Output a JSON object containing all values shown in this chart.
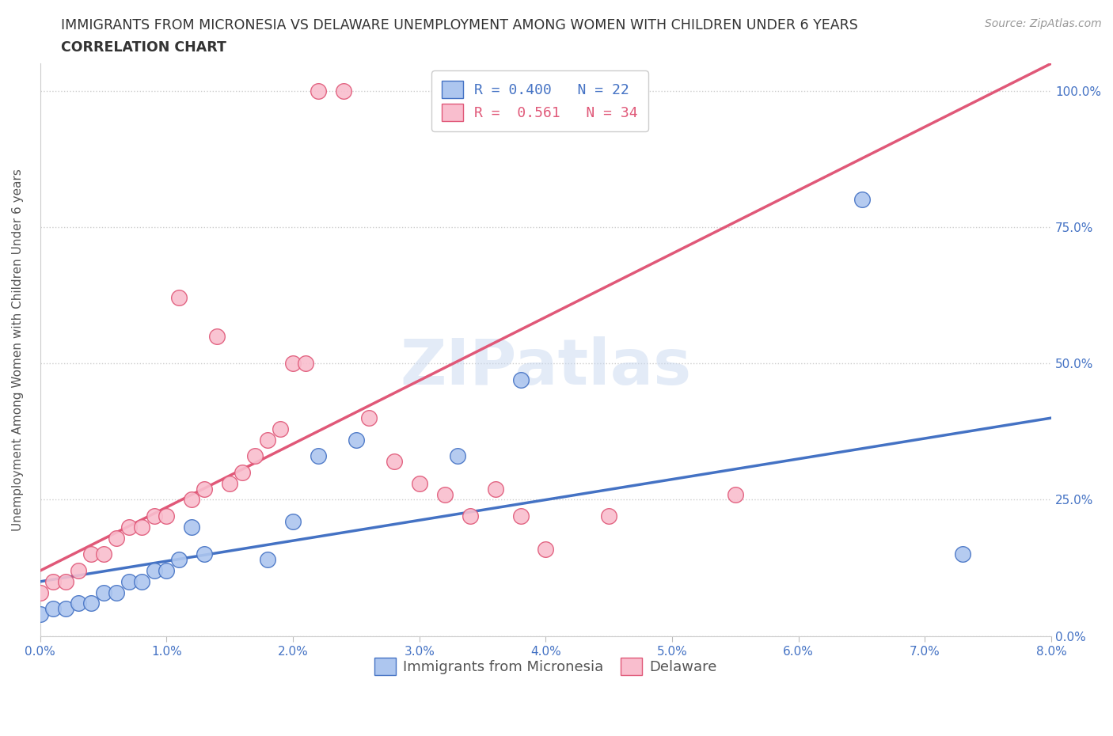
{
  "title_line1": "IMMIGRANTS FROM MICRONESIA VS DELAWARE UNEMPLOYMENT AMONG WOMEN WITH CHILDREN UNDER 6 YEARS",
  "title_line2": "CORRELATION CHART",
  "source_text": "Source: ZipAtlas.com",
  "ylabel": "Unemployment Among Women with Children Under 6 years",
  "xlim": [
    0.0,
    0.08
  ],
  "ylim": [
    0.0,
    1.05
  ],
  "xtick_labels": [
    "0.0%",
    "1.0%",
    "2.0%",
    "3.0%",
    "4.0%",
    "5.0%",
    "6.0%",
    "7.0%",
    "8.0%"
  ],
  "xtick_values": [
    0.0,
    0.01,
    0.02,
    0.03,
    0.04,
    0.05,
    0.06,
    0.07,
    0.08
  ],
  "ytick_labels": [
    "0.0%",
    "25.0%",
    "50.0%",
    "75.0%",
    "100.0%"
  ],
  "ytick_values": [
    0.0,
    0.25,
    0.5,
    0.75,
    1.0
  ],
  "blue_label": "Immigrants from Micronesia",
  "pink_label": "Delaware",
  "blue_R": 0.4,
  "blue_N": 22,
  "pink_R": 0.561,
  "pink_N": 34,
  "blue_color": "#adc6ef",
  "pink_color": "#f9bece",
  "blue_line_color": "#4472c4",
  "pink_line_color": "#e05878",
  "blue_scatter_x": [
    0.0,
    0.001,
    0.002,
    0.003,
    0.004,
    0.005,
    0.006,
    0.007,
    0.008,
    0.009,
    0.01,
    0.011,
    0.012,
    0.013,
    0.018,
    0.02,
    0.022,
    0.025,
    0.033,
    0.038,
    0.065,
    0.073
  ],
  "blue_scatter_y": [
    0.04,
    0.05,
    0.05,
    0.06,
    0.06,
    0.08,
    0.08,
    0.1,
    0.1,
    0.12,
    0.12,
    0.14,
    0.2,
    0.15,
    0.14,
    0.21,
    0.33,
    0.36,
    0.33,
    0.47,
    0.8,
    0.15
  ],
  "pink_scatter_x": [
    0.0,
    0.001,
    0.002,
    0.003,
    0.004,
    0.005,
    0.006,
    0.007,
    0.008,
    0.009,
    0.01,
    0.011,
    0.012,
    0.013,
    0.014,
    0.015,
    0.016,
    0.017,
    0.018,
    0.019,
    0.02,
    0.021,
    0.022,
    0.024,
    0.026,
    0.028,
    0.03,
    0.032,
    0.034,
    0.036,
    0.038,
    0.04,
    0.045,
    0.055
  ],
  "pink_scatter_y": [
    0.08,
    0.1,
    0.1,
    0.12,
    0.15,
    0.15,
    0.18,
    0.2,
    0.2,
    0.22,
    0.22,
    0.62,
    0.25,
    0.27,
    0.55,
    0.28,
    0.3,
    0.33,
    0.36,
    0.38,
    0.5,
    0.5,
    1.0,
    1.0,
    0.4,
    0.32,
    0.28,
    0.26,
    0.22,
    0.27,
    0.22,
    0.16,
    0.22,
    0.26
  ],
  "blue_line_x": [
    0.0,
    0.08
  ],
  "blue_line_y": [
    0.1,
    0.4
  ],
  "pink_line_x": [
    0.0,
    0.08
  ],
  "pink_line_y": [
    0.12,
    1.05
  ],
  "watermark_text": "ZIPatlas",
  "title_fontsize": 12.5,
  "label_fontsize": 11,
  "tick_fontsize": 11,
  "legend_fontsize": 13,
  "background_color": "#ffffff",
  "grid_color": "#cccccc",
  "title_color": "#333333",
  "axis_label_color": "#555555",
  "tick_color": "#4472c4",
  "source_fontsize": 10
}
